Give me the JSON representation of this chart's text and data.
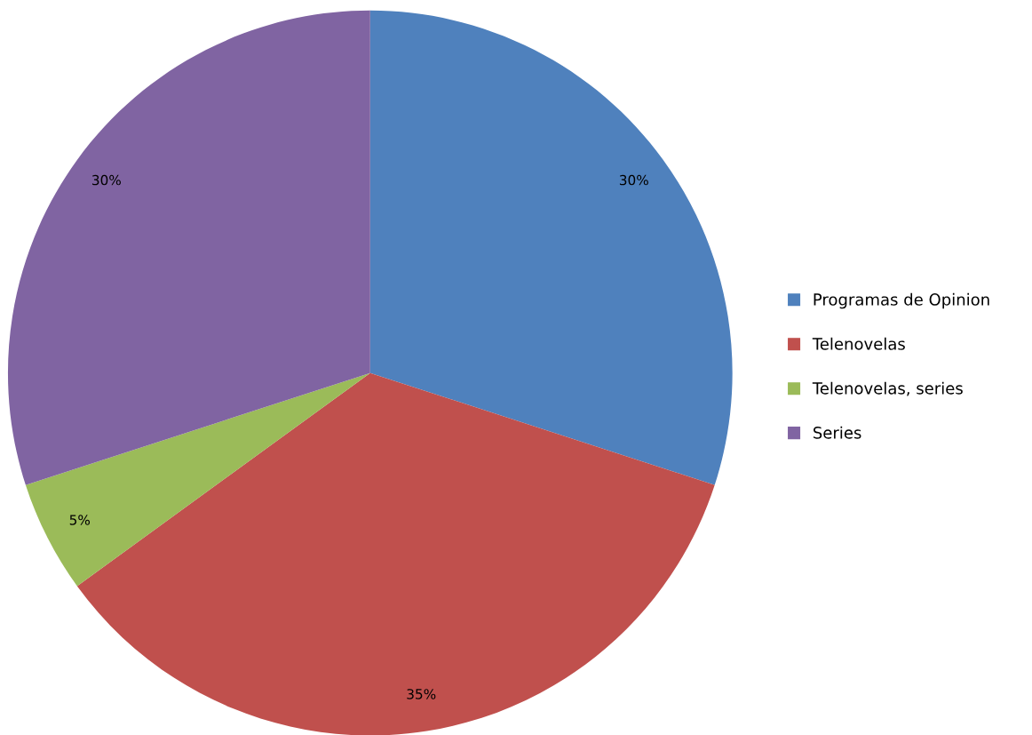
{
  "chart_data": {
    "type": "pie",
    "categories": [
      "Programas de Opinion",
      "Telenovelas",
      "Telenovelas, series",
      "Series"
    ],
    "values": [
      30,
      35,
      5,
      30
    ],
    "colors": [
      "#4f81bd",
      "#c0504d",
      "#9bbb59",
      "#8064a2"
    ],
    "value_labels": [
      "30%",
      "35%",
      "5%",
      "30%"
    ],
    "legend": "right"
  }
}
